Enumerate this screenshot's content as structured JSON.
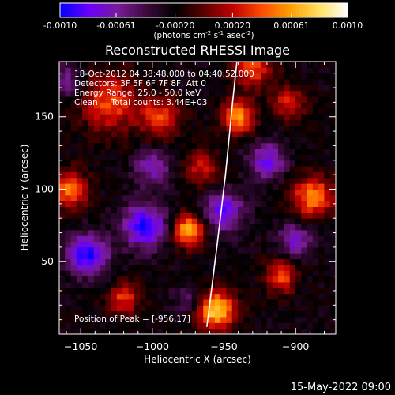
{
  "colorbar": {
    "ticks": [
      "-0.0010",
      "-0.00061",
      "-0.00020",
      "0.00020",
      "0.00061",
      "0.0010"
    ],
    "tick_values": [
      -0.001,
      -0.00061,
      -0.0002,
      0.0002,
      0.00061,
      0.001
    ],
    "unit_parts": [
      "(photons cm",
      "-2",
      " s",
      "-1",
      " asec",
      "-2",
      ")"
    ]
  },
  "chart_data": {
    "type": "heatmap",
    "title": "Reconstructed RHESSI Image",
    "xlabel": "Heliocentric X (arcsec)",
    "ylabel": "Heliocentric Y (arcsec)",
    "xlim": [
      -1065,
      -872
    ],
    "ylim": [
      0,
      188
    ],
    "xticks": [
      -1050,
      -1000,
      -950,
      -900
    ],
    "xtick_labels": [
      "−1050",
      "−1000",
      "−950",
      "−900"
    ],
    "yticks": [
      50,
      100,
      150
    ],
    "ytick_labels": [
      "50",
      "100",
      "150"
    ],
    "value_range": [
      -0.001,
      0.001
    ],
    "colormap": [
      "#0000ff",
      "#6a00ff",
      "#7a1a9a",
      "#3c0a3c",
      "#000000",
      "#5a0000",
      "#c00000",
      "#ff4a00",
      "#ff9f00",
      "#ffe060",
      "#ffffff"
    ],
    "info_lines": [
      "18-Oct-2012 04:38:48.000 to 04:40:52.000",
      "Detectors: 3F 5F 6F 7F 8F, Att 0",
      "Energy Range: 25.0 - 50.0 keV",
      "Clean     Total counts: 3.44E+03"
    ],
    "peak_label": "Position of Peak = [-956,17]",
    "peak": [
      -956,
      17
    ],
    "limb_curve": [
      [
        -962,
        5
      ],
      [
        -955,
        60
      ],
      [
        -949,
        110
      ],
      [
        -944,
        160
      ],
      [
        -941,
        188
      ]
    ],
    "sources": [
      {
        "x": -955,
        "y": 17,
        "sigma": 9,
        "amp": 0.001
      },
      {
        "x": -975,
        "y": 72,
        "sigma": 8,
        "amp": 0.00085
      },
      {
        "x": -940,
        "y": 150,
        "sigma": 8,
        "amp": 0.0008
      },
      {
        "x": -888,
        "y": 95,
        "sigma": 10,
        "amp": 0.00075
      },
      {
        "x": -1058,
        "y": 100,
        "sigma": 9,
        "amp": 0.0007
      },
      {
        "x": -1030,
        "y": 160,
        "sigma": 14,
        "amp": 0.0006
      },
      {
        "x": -1020,
        "y": 25,
        "sigma": 8,
        "amp": 0.00055
      },
      {
        "x": -995,
        "y": 150,
        "sigma": 10,
        "amp": 0.00055
      },
      {
        "x": -910,
        "y": 40,
        "sigma": 8,
        "amp": 0.0006
      },
      {
        "x": -930,
        "y": 185,
        "sigma": 10,
        "amp": 0.0006
      },
      {
        "x": -965,
        "y": 115,
        "sigma": 9,
        "amp": 0.00045
      },
      {
        "x": -905,
        "y": 160,
        "sigma": 8,
        "amp": 0.0005
      },
      {
        "x": -1045,
        "y": 55,
        "sigma": 10,
        "amp": -0.00075
      },
      {
        "x": -1005,
        "y": 75,
        "sigma": 11,
        "amp": -0.0007
      },
      {
        "x": -1000,
        "y": 115,
        "sigma": 9,
        "amp": -0.00045
      },
      {
        "x": -950,
        "y": 85,
        "sigma": 10,
        "amp": -0.0006
      },
      {
        "x": -920,
        "y": 120,
        "sigma": 9,
        "amp": -0.00055
      },
      {
        "x": -900,
        "y": 65,
        "sigma": 8,
        "amp": -0.0005
      },
      {
        "x": -1060,
        "y": 175,
        "sigma": 8,
        "amp": -0.0004
      },
      {
        "x": -975,
        "y": 25,
        "sigma": 7,
        "amp": -0.0003
      }
    ]
  },
  "footer_date": "15-May-2022 09:00"
}
